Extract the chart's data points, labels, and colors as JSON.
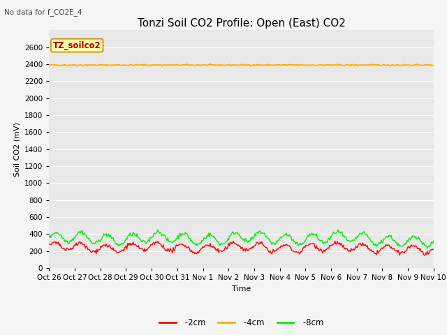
{
  "title": "Tonzi Soil CO2 Profile: Open (East) CO2",
  "no_data_text": "No data for f_CO2E_4",
  "xlabel": "Time",
  "ylabel": "Soil CO2 (mV)",
  "ylim": [
    0,
    2800
  ],
  "yticks": [
    0,
    200,
    400,
    600,
    800,
    1000,
    1200,
    1400,
    1600,
    1800,
    2000,
    2200,
    2400,
    2600
  ],
  "legend_label": "TZ_soilco2",
  "legend_box_facecolor": "#ffffaa",
  "legend_box_edgecolor": "#cc8800",
  "legend_text_color": "#aa0000",
  "line_2cm_color": "#ff0000",
  "line_4cm_color": "#ffaa00",
  "line_8cm_color": "#00ee00",
  "line_4cm_value": 2390,
  "bg_color": "#e8e8e8",
  "fig_facecolor": "#f5f5f5",
  "num_points": 500,
  "x_tick_labels": [
    "Oct 26",
    "Oct 27",
    "Oct 28",
    "Oct 29",
    "Oct 30",
    "Oct 31",
    "Nov 1",
    "Nov 2",
    "Nov 3",
    "Nov 4",
    "Nov 5",
    "Nov 6",
    "Nov 7",
    "Nov 8",
    "Nov 9",
    "Nov 10"
  ],
  "title_fontsize": 11,
  "axis_fontsize": 8,
  "tick_fontsize": 7.5
}
